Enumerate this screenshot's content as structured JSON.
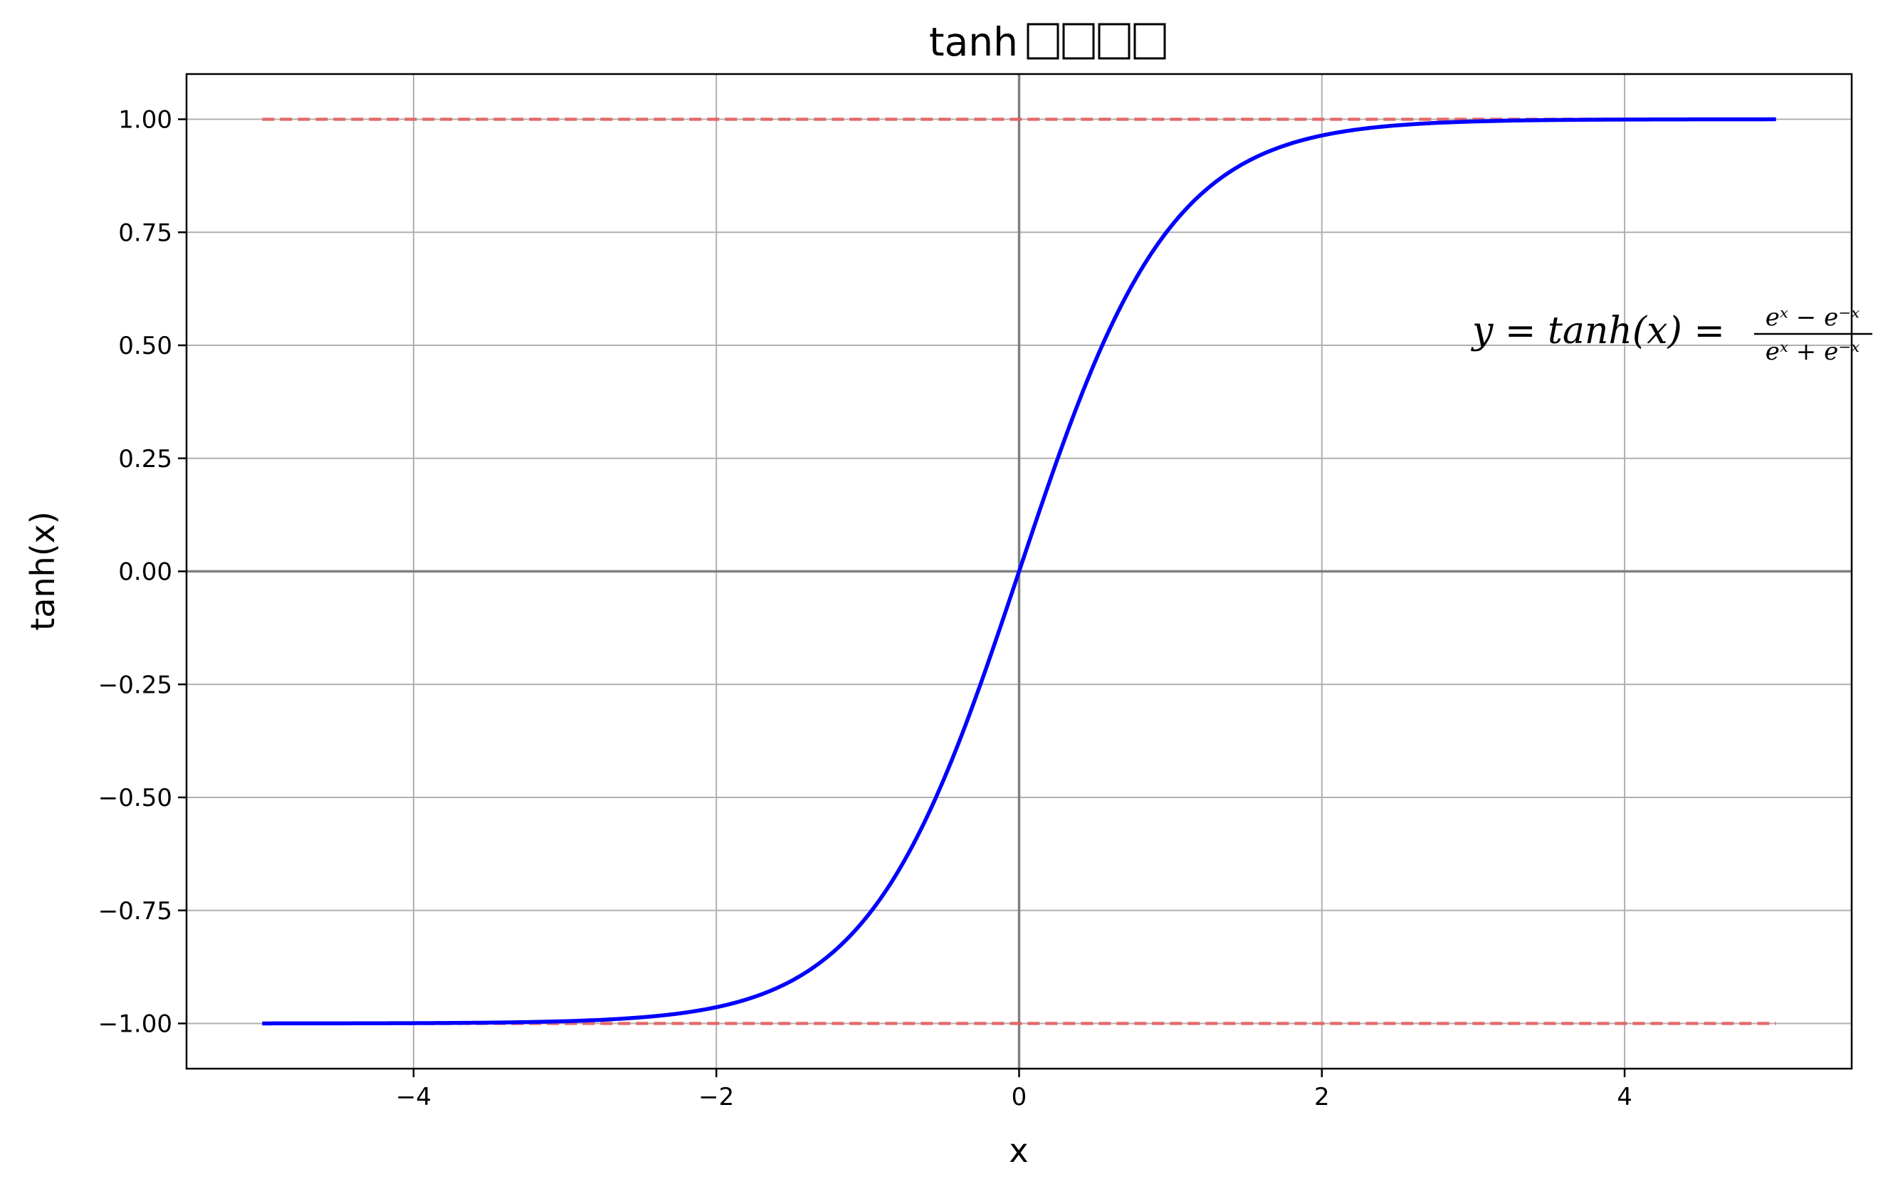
{
  "chart_data": {
    "type": "line",
    "title": "tanh □□□□",
    "title_text": "tanh",
    "title_missing_glyphs": 4,
    "xlabel": "x",
    "ylabel": "tanh(x)",
    "xlim": [
      -5.5,
      5.5
    ],
    "ylim": [
      -1.1,
      1.1
    ],
    "x_ticks": [
      -4,
      -2,
      0,
      2,
      4
    ],
    "x_tick_labels": [
      "−4",
      "−2",
      "0",
      "2",
      "4"
    ],
    "y_ticks": [
      1.0,
      0.75,
      0.5,
      0.25,
      0.0,
      -0.25,
      -0.5,
      -0.75,
      -1.0
    ],
    "y_tick_labels": [
      "1.00",
      "0.75",
      "0.50",
      "0.25",
      "0.00",
      "−0.25",
      "−0.50",
      "−0.75",
      "−1.00"
    ],
    "grid": true,
    "zero_lines": true,
    "series": [
      {
        "function": "tanh",
        "x_range": [
          -5,
          5
        ],
        "color": "#0000ff",
        "style": "solid",
        "x": [
          -5,
          -4,
          -3,
          -2,
          -1.5,
          -1,
          -0.5,
          0,
          0.5,
          1,
          1.5,
          2,
          3,
          4,
          5
        ],
        "y": [
          -0.9999,
          -0.9993,
          -0.9951,
          -0.964,
          -0.9051,
          -0.7616,
          -0.4621,
          0.0,
          0.4621,
          0.7616,
          0.9051,
          0.964,
          0.9951,
          0.9993,
          0.9999
        ]
      }
    ],
    "reference_lines": [
      {
        "y": 1.0,
        "x_range": [
          -5,
          5
        ],
        "color": "#e85a5a",
        "style": "dashed"
      },
      {
        "y": -1.0,
        "x_range": [
          -5,
          5
        ],
        "color": "#e85a5a",
        "style": "dashed"
      }
    ],
    "annotation": {
      "text": "y = tanh(x) = (e^x − e^−x) / (e^x + e^−x)",
      "lhs": "y = tanh(x) =",
      "numerator": "eˣ − e⁻ˣ",
      "denominator": "eˣ + e⁻ˣ",
      "x": 3.0,
      "y": 0.5
    },
    "colors": {
      "curve": "#0000ff",
      "asymptote": "#e85a5a",
      "grid": "#b0b0b0",
      "zero_line": "#808080"
    }
  }
}
